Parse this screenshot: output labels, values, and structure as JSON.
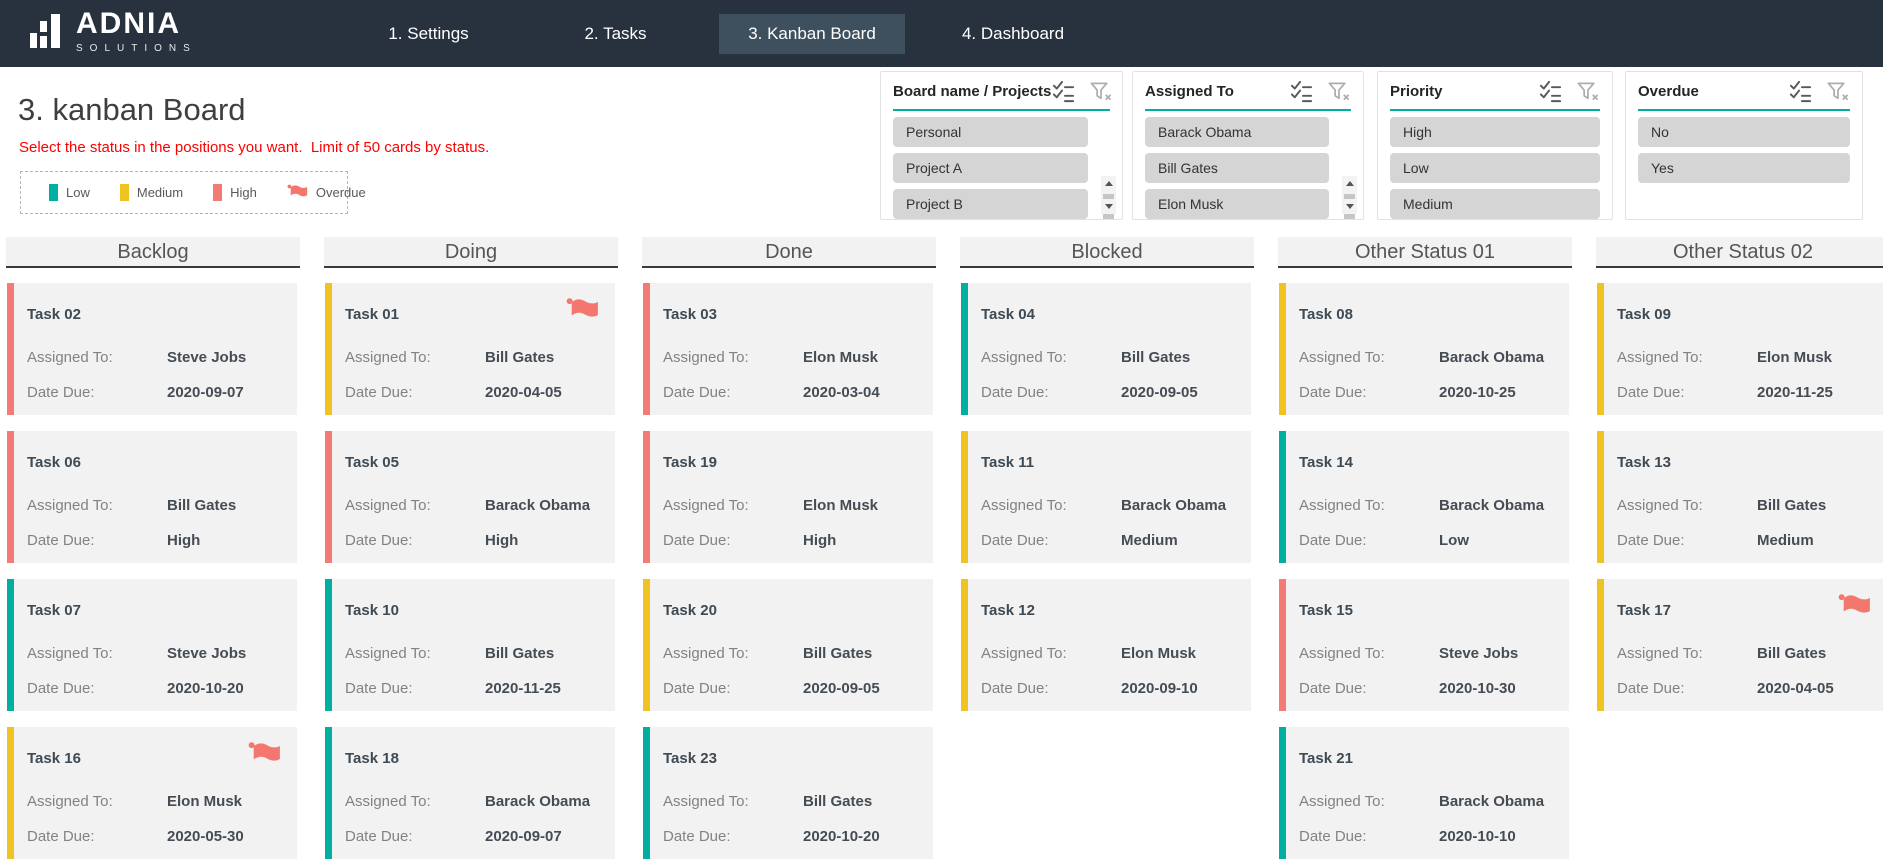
{
  "nav": {
    "brand": "ADNIA",
    "brand_sub": "SOLUTIONS",
    "tabs": [
      {
        "label": "1. Settings",
        "active": false
      },
      {
        "label": "2. Tasks",
        "active": false
      },
      {
        "label": "3. Kanban Board",
        "active": true
      },
      {
        "label": "4. Dashboard",
        "active": false
      }
    ]
  },
  "header": {
    "title": "3. kanban Board",
    "subtitle": "Select the status in the positions you want.  Limit of 50 cards by status.",
    "legend": [
      {
        "label": "Low",
        "type": "swatch",
        "color": "#00AFA0"
      },
      {
        "label": "Medium",
        "type": "swatch",
        "color": "#EFC321"
      },
      {
        "label": "High",
        "type": "swatch",
        "color": "#F47A76"
      },
      {
        "label": "Overdue",
        "type": "flag",
        "color": "#F4776F"
      }
    ]
  },
  "slicers": [
    {
      "title": "Board name / Projects",
      "items": [
        "Personal",
        "Project A",
        "Project B"
      ],
      "scrollbar": true,
      "partial_item": true
    },
    {
      "title": "Assigned To",
      "items": [
        "Barack Obama",
        "Bill Gates",
        "Elon Musk"
      ],
      "scrollbar": true,
      "partial_item": true
    },
    {
      "title": "Priority",
      "items": [
        "High",
        "Low",
        "Medium"
      ],
      "scrollbar": false,
      "partial_item": false
    },
    {
      "title": "Overdue",
      "items": [
        "No",
        "Yes"
      ],
      "scrollbar": false,
      "partial_item": false
    }
  ],
  "board": {
    "field_labels": {
      "assigned": "Assigned To:",
      "due": "Date Due:"
    },
    "columns": [
      {
        "title": "Backlog",
        "cards": [
          {
            "task": "Task 02",
            "priority": "high",
            "assigned": "Steve Jobs",
            "due": "2020-09-07",
            "overdue": false
          },
          {
            "task": "Task 06",
            "priority": "high",
            "assigned": "Bill Gates",
            "due": "High",
            "overdue": false
          },
          {
            "task": "Task 07",
            "priority": "low",
            "assigned": "Steve Jobs",
            "due": "2020-10-20",
            "overdue": false
          },
          {
            "task": "Task 16",
            "priority": "medium",
            "assigned": "Elon Musk",
            "due": "2020-05-30",
            "overdue": true
          }
        ]
      },
      {
        "title": "Doing",
        "cards": [
          {
            "task": "Task 01",
            "priority": "medium",
            "assigned": "Bill Gates",
            "due": "2020-04-05",
            "overdue": true
          },
          {
            "task": "Task 05",
            "priority": "high",
            "assigned": "Barack Obama",
            "due": "High",
            "overdue": false
          },
          {
            "task": "Task 10",
            "priority": "low",
            "assigned": "Bill Gates",
            "due": "2020-11-25",
            "overdue": false
          },
          {
            "task": "Task 18",
            "priority": "low",
            "assigned": "Barack Obama",
            "due": "2020-09-07",
            "overdue": false
          }
        ]
      },
      {
        "title": "Done",
        "cards": [
          {
            "task": "Task 03",
            "priority": "high",
            "assigned": "Elon Musk",
            "due": "2020-03-04",
            "overdue": false
          },
          {
            "task": "Task 19",
            "priority": "high",
            "assigned": "Elon Musk",
            "due": "High",
            "overdue": false
          },
          {
            "task": "Task 20",
            "priority": "medium",
            "assigned": "Bill Gates",
            "due": "2020-09-05",
            "overdue": false
          },
          {
            "task": "Task 23",
            "priority": "low",
            "assigned": "Bill Gates",
            "due": "2020-10-20",
            "overdue": false
          }
        ]
      },
      {
        "title": "Blocked",
        "cards": [
          {
            "task": "Task 04",
            "priority": "low",
            "assigned": "Bill Gates",
            "due": "2020-09-05",
            "overdue": false
          },
          {
            "task": "Task 11",
            "priority": "medium",
            "assigned": "Barack Obama",
            "due": "Medium",
            "overdue": false
          },
          {
            "task": "Task 12",
            "priority": "medium",
            "assigned": "Elon Musk",
            "due": "2020-09-10",
            "overdue": false
          }
        ]
      },
      {
        "title": "Other Status 01",
        "cards": [
          {
            "task": "Task 08",
            "priority": "medium",
            "assigned": "Barack Obama",
            "due": "2020-10-25",
            "overdue": false
          },
          {
            "task": "Task 14",
            "priority": "low",
            "assigned": "Barack Obama",
            "due": "Low",
            "overdue": false
          },
          {
            "task": "Task 15",
            "priority": "high",
            "assigned": "Steve Jobs",
            "due": "2020-10-30",
            "overdue": false
          },
          {
            "task": "Task 21",
            "priority": "low",
            "assigned": "Barack Obama",
            "due": "2020-10-10",
            "overdue": false
          }
        ]
      },
      {
        "title": "Other Status 02",
        "cards": [
          {
            "task": "Task 09",
            "priority": "medium",
            "assigned": "Elon Musk",
            "due": "2020-11-25",
            "overdue": false
          },
          {
            "task": "Task 13",
            "priority": "medium",
            "assigned": "Bill Gates",
            "due": "Medium",
            "overdue": false
          },
          {
            "task": "Task 17",
            "priority": "medium",
            "assigned": "Bill Gates",
            "due": "2020-04-05",
            "overdue": true
          }
        ]
      }
    ]
  },
  "colors": {
    "low": "#00AFA0",
    "medium": "#EFC321",
    "high": "#F47A76",
    "overdue_flag": "#F4776F",
    "accent_teal": "#00AFA0",
    "nav_bg": "#27323E",
    "active_tab_bg": "#3E4F5E",
    "subtitle_red": "#FF0000",
    "card_bg": "#F2F2F2"
  }
}
